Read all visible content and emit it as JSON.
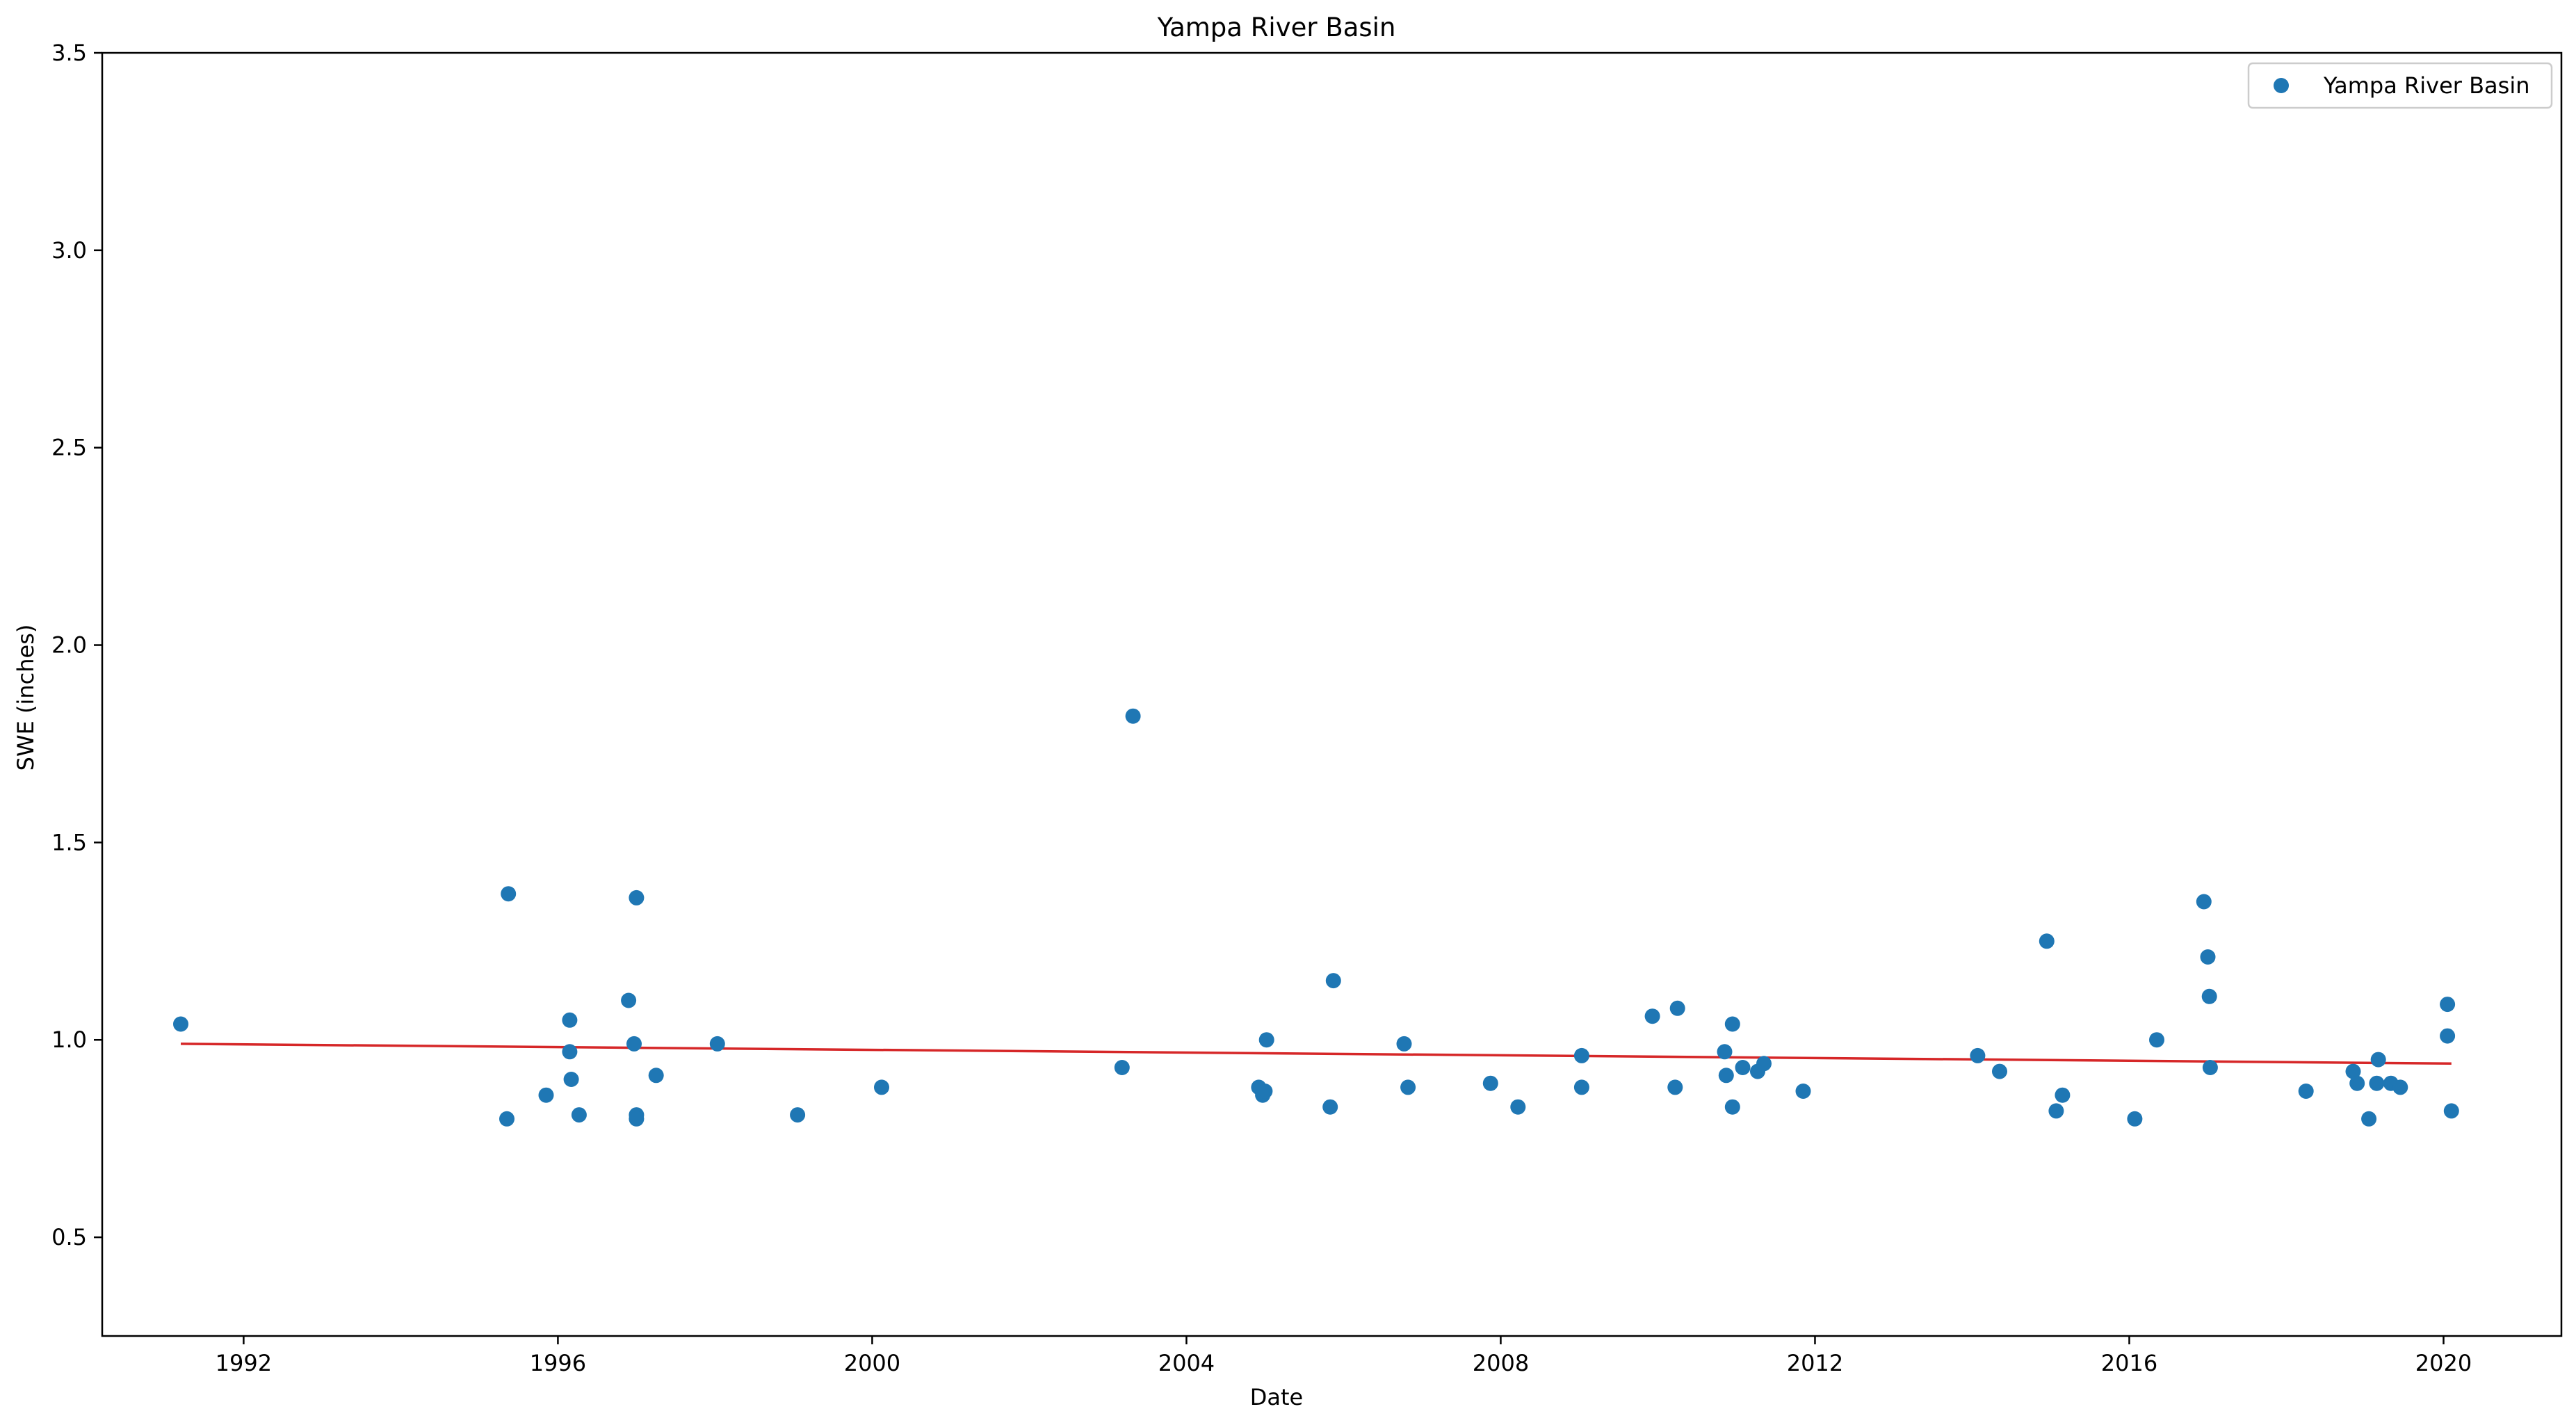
{
  "chart_data": {
    "type": "scatter",
    "title": "Yampa River Basin",
    "xlabel": "Date",
    "ylabel": "SWE (inches)",
    "xlim": [
      1990.2,
      2021.5
    ],
    "ylim": [
      0.25,
      3.5
    ],
    "x_ticks": [
      1992,
      1996,
      2000,
      2004,
      2008,
      2012,
      2016,
      2020
    ],
    "x_tick_labels": [
      "1992",
      "1996",
      "2000",
      "2004",
      "2008",
      "2012",
      "2016",
      "2020"
    ],
    "y_ticks": [
      0.5,
      1.0,
      1.5,
      2.0,
      2.5,
      3.0,
      3.5
    ],
    "y_tick_labels": [
      "0.5",
      "1.0",
      "1.5",
      "2.0",
      "2.5",
      "3.0",
      "3.5"
    ],
    "grid": false,
    "legend": {
      "position": "top-right",
      "entries": [
        "Yampa River Basin"
      ]
    },
    "series": [
      {
        "name": "Yampa River Basin",
        "color": "#1f77b4",
        "marker": "circle",
        "points": [
          [
            1991.2,
            1.04
          ],
          [
            1995.35,
            0.8
          ],
          [
            1995.37,
            1.37
          ],
          [
            1995.85,
            0.86
          ],
          [
            1996.15,
            1.05
          ],
          [
            1996.15,
            0.97
          ],
          [
            1996.17,
            0.9
          ],
          [
            1996.27,
            0.81
          ],
          [
            1996.9,
            1.1
          ],
          [
            1996.97,
            0.99
          ],
          [
            1997.0,
            1.36
          ],
          [
            1997.0,
            0.81
          ],
          [
            1997.0,
            0.8
          ],
          [
            1997.25,
            0.91
          ],
          [
            1998.03,
            0.99
          ],
          [
            1999.05,
            0.81
          ],
          [
            2000.12,
            0.88
          ],
          [
            2003.18,
            0.93
          ],
          [
            2003.32,
            1.82
          ],
          [
            2004.92,
            0.88
          ],
          [
            2004.97,
            0.86
          ],
          [
            2005.0,
            0.87
          ],
          [
            2005.02,
            1.0
          ],
          [
            2005.83,
            0.83
          ],
          [
            2005.87,
            1.15
          ],
          [
            2006.77,
            0.99
          ],
          [
            2006.82,
            0.88
          ],
          [
            2007.87,
            0.89
          ],
          [
            2008.22,
            0.83
          ],
          [
            2009.03,
            0.96
          ],
          [
            2009.03,
            0.88
          ],
          [
            2009.93,
            1.06
          ],
          [
            2010.22,
            0.88
          ],
          [
            2010.25,
            1.08
          ],
          [
            2010.85,
            0.97
          ],
          [
            2010.87,
            0.91
          ],
          [
            2010.95,
            1.04
          ],
          [
            2010.95,
            0.83
          ],
          [
            2011.08,
            0.93
          ],
          [
            2011.27,
            0.92
          ],
          [
            2011.35,
            0.94
          ],
          [
            2011.85,
            0.87
          ],
          [
            2014.07,
            0.96
          ],
          [
            2014.35,
            0.92
          ],
          [
            2014.95,
            1.25
          ],
          [
            2015.07,
            0.82
          ],
          [
            2015.15,
            0.86
          ],
          [
            2016.07,
            0.8
          ],
          [
            2016.35,
            1.0
          ],
          [
            2016.95,
            1.35
          ],
          [
            2017.0,
            1.21
          ],
          [
            2017.02,
            1.11
          ],
          [
            2017.03,
            0.93
          ],
          [
            2018.25,
            0.87
          ],
          [
            2018.85,
            0.92
          ],
          [
            2018.9,
            0.89
          ],
          [
            2019.05,
            0.8
          ],
          [
            2019.15,
            0.89
          ],
          [
            2019.17,
            0.95
          ],
          [
            2019.33,
            0.89
          ],
          [
            2019.45,
            0.88
          ],
          [
            2020.05,
            1.09
          ],
          [
            2020.05,
            1.01
          ],
          [
            2020.1,
            0.82
          ]
        ]
      }
    ],
    "trendline": {
      "color": "#d62728",
      "points": [
        [
          1991.2,
          0.99
        ],
        [
          2020.1,
          0.94
        ]
      ]
    }
  }
}
